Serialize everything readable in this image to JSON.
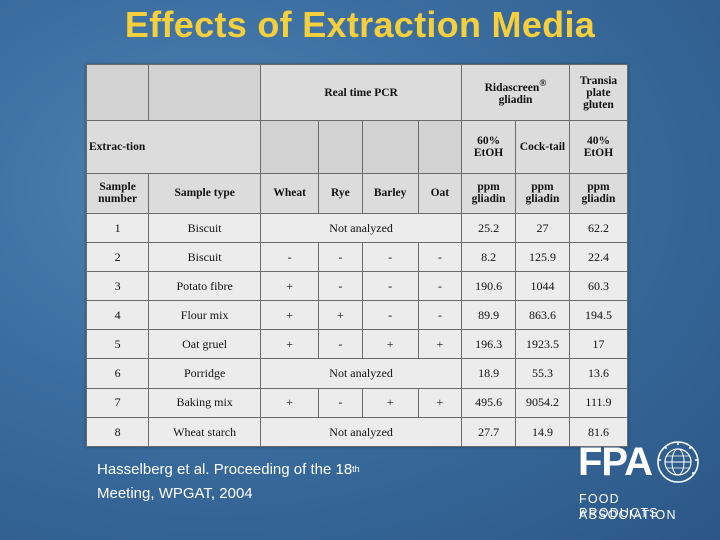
{
  "slide": {
    "title": "Effects of Extraction Media",
    "citation_line1": "Hasselberg et al. Proceeding of the 18",
    "citation_sup": "th",
    "citation_line2": "Meeting, WPGAT, 2004"
  },
  "logo": {
    "abbr": "FPA",
    "line1": "FOOD PRODUCTS",
    "line2": "ASSOCIATION",
    "seal_icon": "globe-seal-icon"
  },
  "table": {
    "group_headers": {
      "pcr": "Real time PCR",
      "ridascreen": "Ridascreen",
      "ridascreen_mark": "®",
      "ridascreen_sub": "gliadin",
      "transia": "Transia plate gluten"
    },
    "extraction_label": "Extrac-tion",
    "extraction_media": [
      "60% EtOH",
      "Cock-tail",
      "40% EtOH"
    ],
    "column_headers": [
      "Sample number",
      "Sample type",
      "Wheat",
      "Rye",
      "Barley",
      "Oat",
      "ppm gliadin",
      "ppm gliadin",
      "ppm gliadin"
    ],
    "not_analyzed": "Not analyzed",
    "rows": [
      {
        "num": "1",
        "type": "Biscuit",
        "pcr": null,
        "ridascreen": "25.2",
        "cocktail": "27",
        "transia": "62.2"
      },
      {
        "num": "2",
        "type": "Biscuit",
        "pcr": [
          "-",
          "-",
          "-",
          "-"
        ],
        "ridascreen": "8.2",
        "cocktail": "125.9",
        "transia": "22.4"
      },
      {
        "num": "3",
        "type": "Potato fibre",
        "pcr": [
          "+",
          "-",
          "-",
          "-"
        ],
        "ridascreen": "190.6",
        "cocktail": "1044",
        "transia": "60.3"
      },
      {
        "num": "4",
        "type": "Flour mix",
        "pcr": [
          "+",
          "+",
          "-",
          "-"
        ],
        "ridascreen": "89.9",
        "cocktail": "863.6",
        "transia": "194.5"
      },
      {
        "num": "5",
        "type": "Oat gruel",
        "pcr": [
          "+",
          "-",
          "+",
          "+"
        ],
        "ridascreen": "196.3",
        "cocktail": "1923.5",
        "transia": "17"
      },
      {
        "num": "6",
        "type": "Porridge",
        "pcr": null,
        "ridascreen": "18.9",
        "cocktail": "55.3",
        "transia": "13.6"
      },
      {
        "num": "7",
        "type": "Baking mix",
        "pcr": [
          "+",
          "-",
          "+",
          "+"
        ],
        "ridascreen": "495.6",
        "cocktail": "9054.2",
        "transia": "111.9"
      },
      {
        "num": "8",
        "type": "Wheat starch",
        "pcr": null,
        "ridascreen": "27.7",
        "cocktail": "14.9",
        "transia": "81.6"
      }
    ]
  }
}
